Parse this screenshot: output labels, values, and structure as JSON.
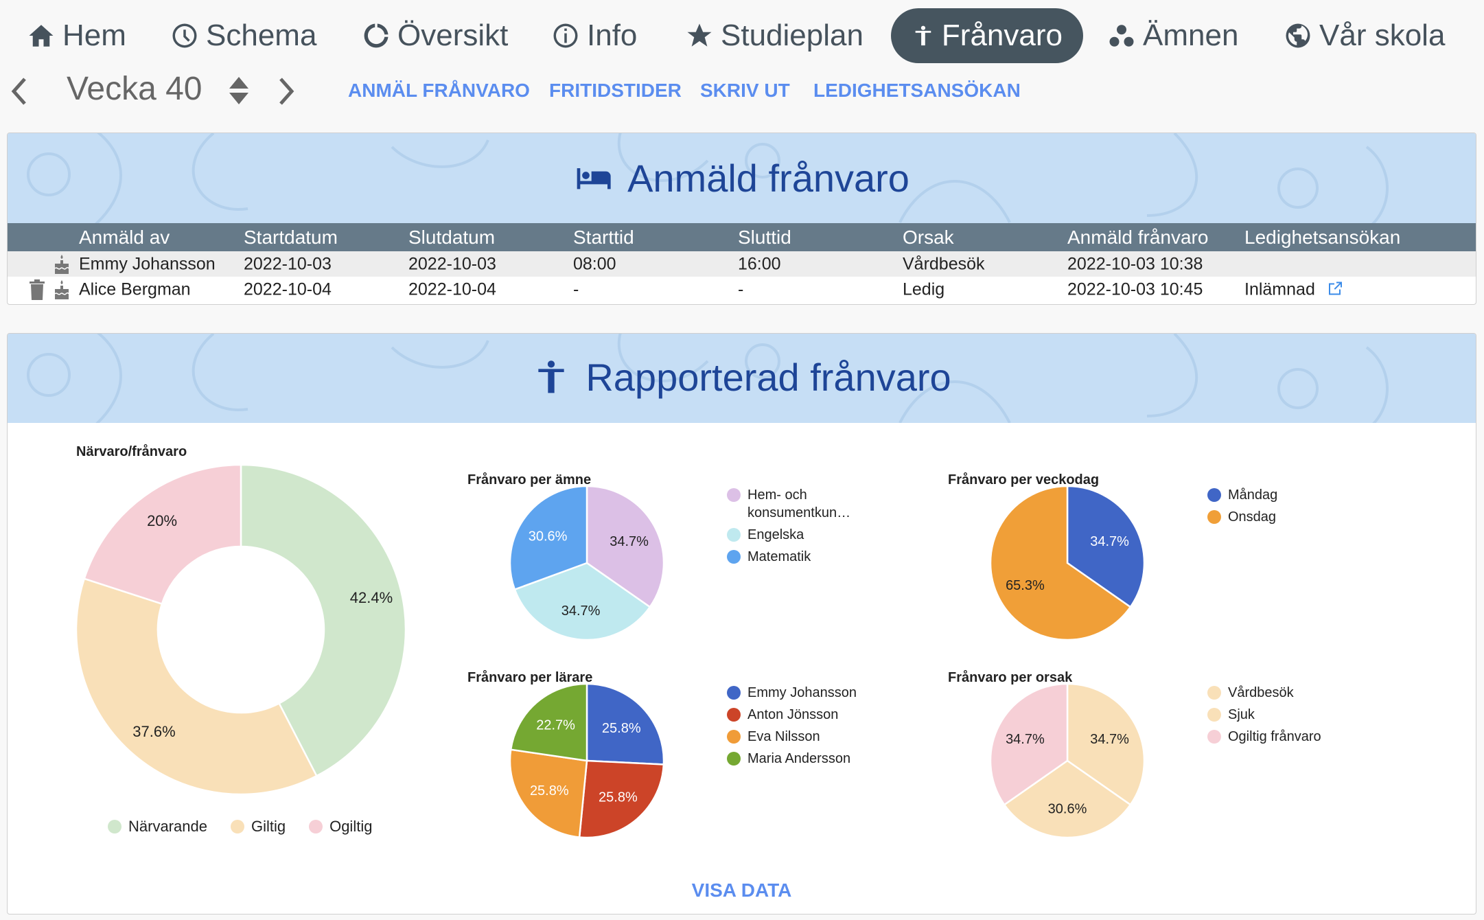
{
  "nav": [
    {
      "label": "Hem",
      "icon": "home-icon"
    },
    {
      "label": "Schema",
      "icon": "clock-icon"
    },
    {
      "label": "Översikt",
      "icon": "overview-icon"
    },
    {
      "label": "Info",
      "icon": "info-icon"
    },
    {
      "label": "Studieplan",
      "icon": "star-icon"
    },
    {
      "label": "Frånvaro",
      "icon": "person-icon",
      "active": true
    },
    {
      "label": "Ämnen",
      "icon": "subjects-icon"
    },
    {
      "label": "Vår skola",
      "icon": "globe-icon"
    }
  ],
  "week": {
    "label": "Vecka 40"
  },
  "links": [
    "ANMÄL FRÅNVARO",
    "FRITIDSTIDER",
    "SKRIV UT",
    "LEDIGHETSANSÖKAN"
  ],
  "reported": {
    "title": "Anmäld frånvaro",
    "columns": [
      "Anmäld av",
      "Startdatum",
      "Slutdatum",
      "Starttid",
      "Sluttid",
      "Orsak",
      "Anmäld frånvaro",
      "Ledighetsansökan"
    ],
    "rows": [
      [
        "Emmy Johansson",
        "2022-10-03",
        "2022-10-03",
        "08:00",
        "16:00",
        "Vårdbesök",
        "2022-10-03 10:38",
        ""
      ],
      [
        "Alice Bergman",
        "2022-10-04",
        "2022-10-04",
        "-",
        "-",
        "Ledig",
        "2022-10-03 10:45",
        "Inlämnad"
      ]
    ]
  },
  "absence": {
    "title": "Rapporterad frånvaro",
    "show_data": "VISA DATA"
  },
  "chart_data": [
    {
      "type": "pie",
      "title": "Närvaro/frånvaro",
      "donut": true,
      "legend": "bottom",
      "slices": [
        {
          "label": "Närvarande",
          "value": 42.4,
          "color": "#d0e7cc"
        },
        {
          "label": "Giltig",
          "value": 37.6,
          "color": "#f9e0b8"
        },
        {
          "label": "Ogiltig",
          "value": 20,
          "color": "#f6cfd6"
        }
      ],
      "value_labels": [
        "42.4%",
        "37.6%",
        "20%"
      ]
    },
    {
      "type": "pie",
      "title": "Frånvaro per ämne",
      "legend": "right",
      "slices": [
        {
          "label": "Hem- och konsumentkun…",
          "value": 34.7,
          "color": "#dcc0e6"
        },
        {
          "label": "Engelska",
          "value": 34.7,
          "color": "#bfe9ef"
        },
        {
          "label": "Matematik",
          "value": 30.6,
          "color": "#5ea4ef"
        }
      ],
      "value_labels": [
        "34.7%",
        "34.7%",
        "30.6%"
      ]
    },
    {
      "type": "pie",
      "title": "Frånvaro per veckodag",
      "legend": "right",
      "slices": [
        {
          "label": "Måndag",
          "value": 34.7,
          "color": "#4066c6"
        },
        {
          "label": "Onsdag",
          "value": 65.3,
          "color": "#f09f38"
        }
      ],
      "value_labels": [
        "34.7%",
        "65.3%"
      ]
    },
    {
      "type": "pie",
      "title": "Frånvaro per lärare",
      "legend": "right",
      "slices": [
        {
          "label": "Emmy Johansson",
          "value": 25.8,
          "color": "#4066c6"
        },
        {
          "label": "Anton Jönsson",
          "value": 25.8,
          "color": "#cc4428"
        },
        {
          "label": "Eva Nilsson",
          "value": 25.8,
          "color": "#f09c38"
        },
        {
          "label": "Maria Andersson",
          "value": 22.7,
          "color": "#75a832"
        }
      ],
      "value_labels": [
        "25.8%",
        "25.8%",
        "25.8%",
        "22.7%"
      ]
    },
    {
      "type": "pie",
      "title": "Frånvaro per orsak",
      "legend": "right",
      "slices": [
        {
          "label": "Vårdbesök",
          "value": 34.7,
          "color": "#f9e0b8"
        },
        {
          "label": "Sjuk",
          "value": 30.6,
          "color": "#f9e0b8"
        },
        {
          "label": "Ogiltig frånvaro",
          "value": 34.7,
          "color": "#f6cfd6"
        }
      ],
      "value_labels": [
        "34.7%",
        "30.6%",
        "34.7%"
      ]
    }
  ]
}
